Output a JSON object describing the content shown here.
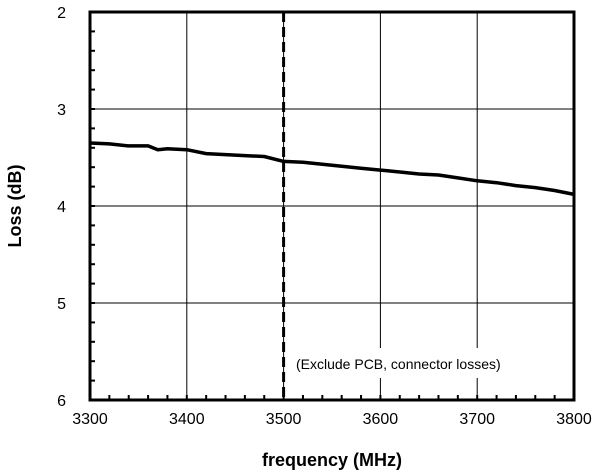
{
  "chart_data": {
    "type": "line",
    "xlabel": "frequency (MHz)",
    "ylabel": "Loss (dB)",
    "xlim": [
      3300,
      3800
    ],
    "ylim": [
      2,
      6
    ],
    "y_inverted": true,
    "x_ticks": [
      3300,
      3400,
      3500,
      3600,
      3700,
      3800
    ],
    "y_ticks": [
      2,
      3,
      4,
      5,
      6
    ],
    "grid": true,
    "annotation": "(Exclude PCB, connector losses)",
    "reference_line_x": 3500,
    "line_color": "#000000",
    "series": [
      {
        "x": [
          3300,
          3320,
          3340,
          3360,
          3370,
          3380,
          3400,
          3420,
          3440,
          3460,
          3480,
          3500,
          3520,
          3540,
          3560,
          3580,
          3600,
          3620,
          3640,
          3660,
          3680,
          3700,
          3720,
          3740,
          3760,
          3780,
          3800
        ],
        "values": [
          3.35,
          3.36,
          3.38,
          3.38,
          3.42,
          3.41,
          3.42,
          3.46,
          3.47,
          3.48,
          3.49,
          3.54,
          3.55,
          3.57,
          3.59,
          3.61,
          3.63,
          3.65,
          3.67,
          3.68,
          3.71,
          3.74,
          3.76,
          3.79,
          3.81,
          3.84,
          3.88
        ]
      }
    ]
  }
}
